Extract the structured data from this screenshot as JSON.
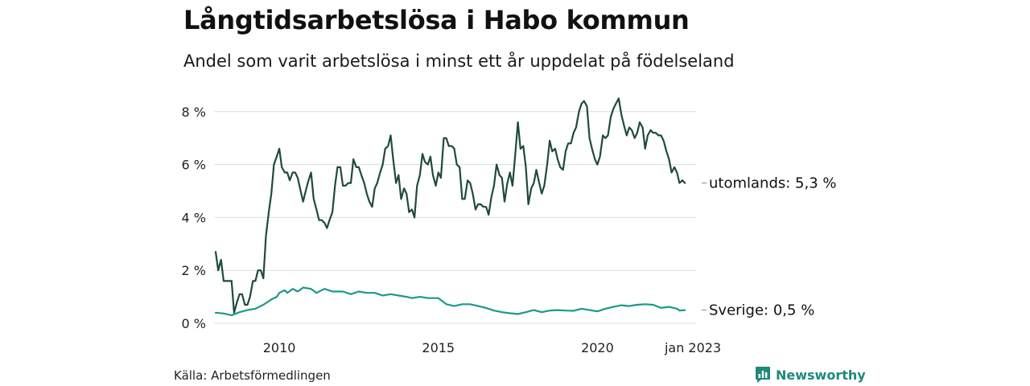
{
  "header": {
    "title": "Långtidsarbetslösa i Habo kommun",
    "subtitle": "Andel som varit arbetslösa i minst ett år uppdelat på födelseland"
  },
  "footer": {
    "source": "Källa: Arbetsförmedlingen",
    "brand": "Newsworthy"
  },
  "colors": {
    "utomlands": "#1f4a40",
    "sverige": "#1a9a86",
    "grid": "#dddddd",
    "brand": "#1e8a78"
  },
  "icons": {
    "brand_logo": "bar-chart-speech-bubble-icon"
  },
  "chart_data": {
    "type": "line",
    "title": "Långtidsarbetslösa i Habo kommun",
    "subtitle": "Andel som varit arbetslösa i minst ett år uppdelat på födelseland",
    "x_ticks": [
      {
        "x": 2010.0,
        "label": "2010"
      },
      {
        "x": 2015.0,
        "label": "2015"
      },
      {
        "x": 2020.0,
        "label": "2020"
      },
      {
        "x": 2023.0,
        "label": "jan 2023"
      }
    ],
    "y_ticks": [
      {
        "y": 0,
        "label": "0 %"
      },
      {
        "y": 2,
        "label": "2 %"
      },
      {
        "y": 4,
        "label": "4 %"
      },
      {
        "y": 6,
        "label": "6 %"
      },
      {
        "y": 8,
        "label": "8 %"
      }
    ],
    "xlim": [
      2008.0,
      2023.1
    ],
    "ylim": [
      0,
      8.8
    ],
    "grid": true,
    "series": [
      {
        "name": "utomlands",
        "end_label": "utomlands: 5,3 %",
        "points": [
          [
            2008.0,
            2.7
          ],
          [
            2008.08,
            2.0
          ],
          [
            2008.17,
            2.4
          ],
          [
            2008.25,
            1.6
          ],
          [
            2008.5,
            1.6
          ],
          [
            2008.58,
            0.4
          ],
          [
            2008.67,
            0.8
          ],
          [
            2008.75,
            1.1
          ],
          [
            2008.83,
            1.1
          ],
          [
            2008.92,
            0.7
          ],
          [
            2009.0,
            0.7
          ],
          [
            2009.08,
            1.0
          ],
          [
            2009.17,
            1.6
          ],
          [
            2009.25,
            1.6
          ],
          [
            2009.33,
            2.0
          ],
          [
            2009.42,
            2.0
          ],
          [
            2009.5,
            1.7
          ],
          [
            2009.58,
            3.3
          ],
          [
            2009.67,
            4.2
          ],
          [
            2009.75,
            4.9
          ],
          [
            2009.83,
            6.0
          ],
          [
            2009.92,
            6.3
          ],
          [
            2010.0,
            6.6
          ],
          [
            2010.08,
            5.9
          ],
          [
            2010.17,
            5.7
          ],
          [
            2010.25,
            5.7
          ],
          [
            2010.33,
            5.4
          ],
          [
            2010.42,
            5.7
          ],
          [
            2010.5,
            5.7
          ],
          [
            2010.58,
            5.5
          ],
          [
            2010.67,
            5.0
          ],
          [
            2010.75,
            4.6
          ],
          [
            2010.83,
            5.0
          ],
          [
            2010.92,
            5.4
          ],
          [
            2011.0,
            5.7
          ],
          [
            2011.08,
            4.7
          ],
          [
            2011.17,
            4.3
          ],
          [
            2011.25,
            3.9
          ],
          [
            2011.33,
            3.9
          ],
          [
            2011.42,
            3.8
          ],
          [
            2011.5,
            3.6
          ],
          [
            2011.58,
            3.9
          ],
          [
            2011.67,
            4.2
          ],
          [
            2011.75,
            5.2
          ],
          [
            2011.83,
            5.9
          ],
          [
            2011.92,
            5.9
          ],
          [
            2012.0,
            5.2
          ],
          [
            2012.08,
            5.2
          ],
          [
            2012.17,
            5.3
          ],
          [
            2012.25,
            5.3
          ],
          [
            2012.33,
            6.2
          ],
          [
            2012.42,
            5.9
          ],
          [
            2012.5,
            5.9
          ],
          [
            2012.58,
            5.6
          ],
          [
            2012.67,
            5.3
          ],
          [
            2012.75,
            4.9
          ],
          [
            2012.83,
            4.6
          ],
          [
            2012.92,
            4.4
          ],
          [
            2013.0,
            5.1
          ],
          [
            2013.08,
            5.3
          ],
          [
            2013.17,
            5.7
          ],
          [
            2013.25,
            6.0
          ],
          [
            2013.33,
            6.6
          ],
          [
            2013.42,
            6.7
          ],
          [
            2013.5,
            7.1
          ],
          [
            2013.58,
            6.2
          ],
          [
            2013.67,
            5.3
          ],
          [
            2013.75,
            5.6
          ],
          [
            2013.83,
            4.7
          ],
          [
            2013.92,
            5.1
          ],
          [
            2014.0,
            4.9
          ],
          [
            2014.08,
            4.2
          ],
          [
            2014.17,
            4.3
          ],
          [
            2014.25,
            4.0
          ],
          [
            2014.33,
            5.2
          ],
          [
            2014.42,
            5.6
          ],
          [
            2014.5,
            6.4
          ],
          [
            2014.58,
            6.1
          ],
          [
            2014.67,
            6.0
          ],
          [
            2014.75,
            6.3
          ],
          [
            2014.83,
            5.6
          ],
          [
            2014.92,
            5.2
          ],
          [
            2015.0,
            5.7
          ],
          [
            2015.08,
            5.5
          ],
          [
            2015.17,
            7.0
          ],
          [
            2015.25,
            7.0
          ],
          [
            2015.33,
            6.7
          ],
          [
            2015.42,
            6.7
          ],
          [
            2015.5,
            6.6
          ],
          [
            2015.58,
            6.0
          ],
          [
            2015.67,
            5.9
          ],
          [
            2015.75,
            4.7
          ],
          [
            2015.83,
            4.7
          ],
          [
            2015.92,
            5.4
          ],
          [
            2016.0,
            5.3
          ],
          [
            2016.08,
            4.9
          ],
          [
            2016.17,
            4.3
          ],
          [
            2016.25,
            4.5
          ],
          [
            2016.33,
            4.5
          ],
          [
            2016.42,
            4.4
          ],
          [
            2016.5,
            4.4
          ],
          [
            2016.58,
            4.1
          ],
          [
            2016.67,
            4.8
          ],
          [
            2016.75,
            5.2
          ],
          [
            2016.83,
            6.0
          ],
          [
            2016.92,
            5.6
          ],
          [
            2017.0,
            5.5
          ],
          [
            2017.08,
            4.6
          ],
          [
            2017.17,
            5.3
          ],
          [
            2017.25,
            5.7
          ],
          [
            2017.33,
            5.2
          ],
          [
            2017.42,
            6.4
          ],
          [
            2017.5,
            7.6
          ],
          [
            2017.58,
            6.6
          ],
          [
            2017.67,
            6.7
          ],
          [
            2017.75,
            5.9
          ],
          [
            2017.83,
            4.5
          ],
          [
            2017.92,
            5.1
          ],
          [
            2018.0,
            5.3
          ],
          [
            2018.08,
            5.8
          ],
          [
            2018.17,
            5.3
          ],
          [
            2018.25,
            4.9
          ],
          [
            2018.33,
            5.2
          ],
          [
            2018.42,
            6.0
          ],
          [
            2018.5,
            6.9
          ],
          [
            2018.58,
            6.5
          ],
          [
            2018.67,
            6.6
          ],
          [
            2018.75,
            6.2
          ],
          [
            2018.83,
            5.9
          ],
          [
            2018.92,
            5.8
          ],
          [
            2019.0,
            6.5
          ],
          [
            2019.08,
            6.8
          ],
          [
            2019.17,
            6.8
          ],
          [
            2019.25,
            7.2
          ],
          [
            2019.33,
            7.4
          ],
          [
            2019.42,
            8.0
          ],
          [
            2019.5,
            8.3
          ],
          [
            2019.58,
            8.4
          ],
          [
            2019.67,
            8.2
          ],
          [
            2019.75,
            7.0
          ],
          [
            2019.83,
            6.6
          ],
          [
            2019.92,
            6.2
          ],
          [
            2020.0,
            6.0
          ],
          [
            2020.08,
            6.3
          ],
          [
            2020.17,
            7.1
          ],
          [
            2020.25,
            7.0
          ],
          [
            2020.33,
            7.1
          ],
          [
            2020.42,
            7.8
          ],
          [
            2020.5,
            8.1
          ],
          [
            2020.58,
            8.3
          ],
          [
            2020.67,
            8.5
          ],
          [
            2020.75,
            7.9
          ],
          [
            2020.83,
            7.5
          ],
          [
            2020.92,
            7.1
          ],
          [
            2021.0,
            7.4
          ],
          [
            2021.08,
            7.3
          ],
          [
            2021.17,
            7.0
          ],
          [
            2021.25,
            7.2
          ],
          [
            2021.33,
            7.6
          ],
          [
            2021.42,
            7.4
          ],
          [
            2021.5,
            6.6
          ],
          [
            2021.58,
            7.1
          ],
          [
            2021.67,
            7.3
          ],
          [
            2021.75,
            7.2
          ],
          [
            2021.83,
            7.2
          ],
          [
            2021.92,
            7.1
          ],
          [
            2022.0,
            7.1
          ],
          [
            2022.08,
            6.9
          ],
          [
            2022.17,
            6.5
          ],
          [
            2022.25,
            6.2
          ],
          [
            2022.33,
            5.7
          ],
          [
            2022.42,
            5.9
          ],
          [
            2022.5,
            5.7
          ],
          [
            2022.58,
            5.3
          ],
          [
            2022.67,
            5.4
          ],
          [
            2022.75,
            5.3
          ]
        ]
      },
      {
        "name": "Sverige",
        "end_label": "Sverige: 0,5 %",
        "points": [
          [
            2008.0,
            0.4
          ],
          [
            2008.25,
            0.37
          ],
          [
            2008.5,
            0.3
          ],
          [
            2008.75,
            0.42
          ],
          [
            2009.0,
            0.5
          ],
          [
            2009.25,
            0.55
          ],
          [
            2009.5,
            0.7
          ],
          [
            2009.75,
            0.9
          ],
          [
            2009.92,
            1.0
          ],
          [
            2010.0,
            1.15
          ],
          [
            2010.17,
            1.25
          ],
          [
            2010.25,
            1.15
          ],
          [
            2010.42,
            1.3
          ],
          [
            2010.58,
            1.2
          ],
          [
            2010.75,
            1.35
          ],
          [
            2011.0,
            1.3
          ],
          [
            2011.17,
            1.15
          ],
          [
            2011.42,
            1.3
          ],
          [
            2011.67,
            1.2
          ],
          [
            2012.0,
            1.2
          ],
          [
            2012.25,
            1.1
          ],
          [
            2012.5,
            1.2
          ],
          [
            2012.75,
            1.15
          ],
          [
            2013.0,
            1.15
          ],
          [
            2013.25,
            1.05
          ],
          [
            2013.5,
            1.1
          ],
          [
            2013.75,
            1.05
          ],
          [
            2014.0,
            1.0
          ],
          [
            2014.17,
            0.95
          ],
          [
            2014.42,
            1.0
          ],
          [
            2014.67,
            0.95
          ],
          [
            2015.0,
            0.95
          ],
          [
            2015.25,
            0.72
          ],
          [
            2015.5,
            0.65
          ],
          [
            2015.75,
            0.72
          ],
          [
            2016.0,
            0.72
          ],
          [
            2016.25,
            0.65
          ],
          [
            2016.5,
            0.58
          ],
          [
            2016.75,
            0.48
          ],
          [
            2017.0,
            0.42
          ],
          [
            2017.25,
            0.38
          ],
          [
            2017.5,
            0.35
          ],
          [
            2017.75,
            0.42
          ],
          [
            2018.0,
            0.5
          ],
          [
            2018.25,
            0.42
          ],
          [
            2018.5,
            0.48
          ],
          [
            2018.75,
            0.5
          ],
          [
            2019.0,
            0.48
          ],
          [
            2019.25,
            0.47
          ],
          [
            2019.5,
            0.55
          ],
          [
            2019.75,
            0.5
          ],
          [
            2020.0,
            0.45
          ],
          [
            2020.25,
            0.55
          ],
          [
            2020.5,
            0.62
          ],
          [
            2020.75,
            0.68
          ],
          [
            2021.0,
            0.65
          ],
          [
            2021.25,
            0.7
          ],
          [
            2021.5,
            0.72
          ],
          [
            2021.75,
            0.7
          ],
          [
            2022.0,
            0.58
          ],
          [
            2022.25,
            0.62
          ],
          [
            2022.5,
            0.55
          ],
          [
            2022.58,
            0.48
          ],
          [
            2022.75,
            0.5
          ]
        ]
      }
    ]
  }
}
